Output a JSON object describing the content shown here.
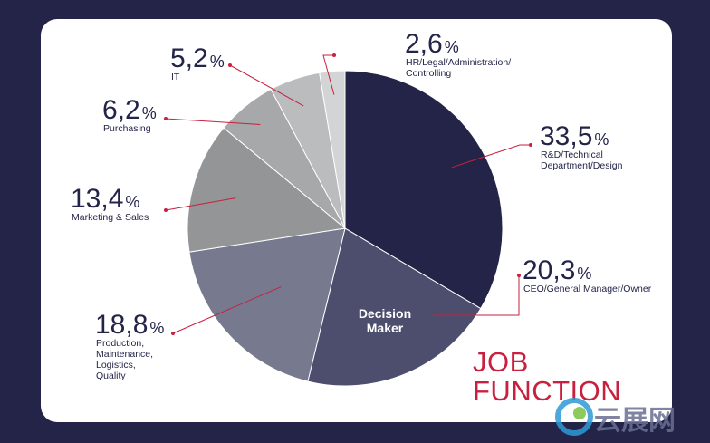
{
  "chart_data": {
    "type": "pie",
    "title": "JOB FUNCTION",
    "center_label": "Decision Maker",
    "slices": [
      {
        "name": "R&D/Technical Department/Design",
        "value": 33.5,
        "display": "33,5",
        "label_lines": [
          "R&D/Technical",
          "Department/Design"
        ],
        "color": "#232448"
      },
      {
        "name": "CEO/General Manager/Owner",
        "value": 20.3,
        "display": "20,3",
        "label_lines": [
          "CEO/General Manager/Owner"
        ],
        "color": "#4d4e6e"
      },
      {
        "name": "Production, Maintenance, Logistics, Quality",
        "value": 18.8,
        "display": "18,8",
        "label_lines": [
          "Production,",
          "Maintenance,",
          "Logistics,",
          "Quality"
        ],
        "color": "#777a8f"
      },
      {
        "name": "Marketing & Sales",
        "value": 13.4,
        "display": "13,4",
        "label_lines": [
          "Marketing & Sales"
        ],
        "color": "#949596"
      },
      {
        "name": "Purchasing",
        "value": 6.2,
        "display": "6,2",
        "label_lines": [
          "Purchasing"
        ],
        "color": "#a7a8aa"
      },
      {
        "name": "IT",
        "value": 5.2,
        "display": "5,2",
        "label_lines": [
          "IT"
        ],
        "color": "#bbbcbe"
      },
      {
        "name": "HR/Legal/Administration/Controlling",
        "value": 2.6,
        "display": "2,6",
        "label_lines": [
          "HR/Legal/Administration/",
          "Controlling"
        ],
        "color": "#d3d4d5"
      }
    ],
    "percent_sign": "%",
    "leader_color": "#c8203f",
    "legend": "none"
  },
  "watermark": {
    "text": "云展网"
  }
}
